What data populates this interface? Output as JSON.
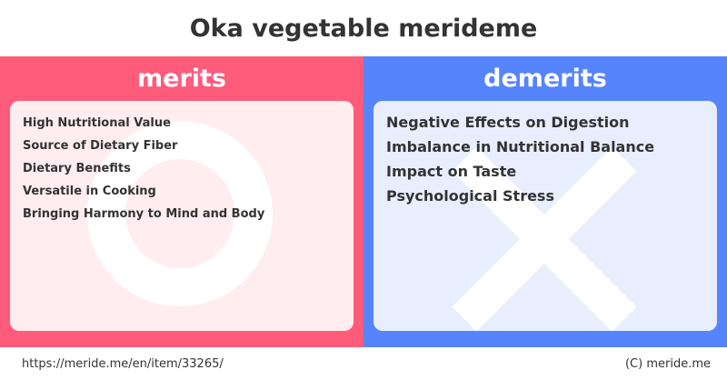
{
  "title": "Oka vegetable merideme",
  "merits": {
    "heading": "merits",
    "items": [
      "High Nutritional Value",
      "Source of Dietary Fiber",
      "Dietary Benefits",
      "Versatile in Cooking",
      "Bringing Harmony to Mind and Body"
    ]
  },
  "demerits": {
    "heading": "demerits",
    "items": [
      "Negative Effects on Digestion",
      "Imbalance in Nutritional Balance",
      "Impact on Taste",
      "Psychological Stress"
    ]
  },
  "footer": {
    "url": "https://meride.me/en/item/33265/",
    "copyright": "(C) meride.me"
  },
  "colors": {
    "merits_accent": "#ff5c7c",
    "demerits_accent": "#5584fc",
    "merits_box": "#ffedf0",
    "demerits_box": "#e8eefe"
  },
  "icons": {
    "merits": "circle-icon",
    "demerits": "cross-icon"
  }
}
